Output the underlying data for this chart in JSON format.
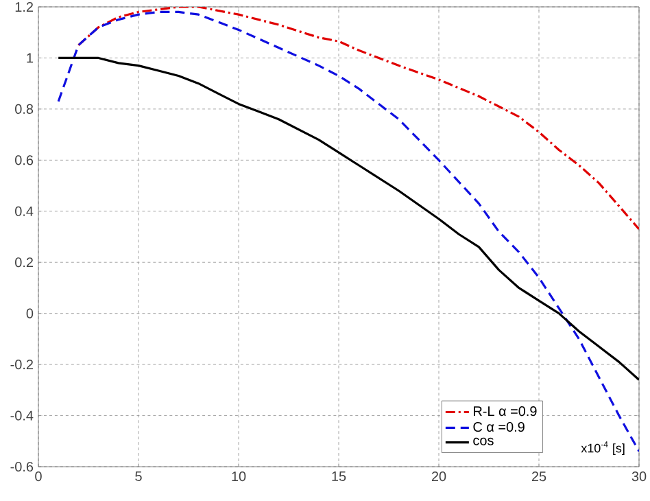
{
  "chart_data": {
    "type": "line",
    "xlabel": "x10$^{-4}$ [s]",
    "xlim": [
      0,
      30
    ],
    "ylim": [
      -0.6,
      1.2
    ],
    "xticks": [
      0,
      5,
      10,
      15,
      20,
      25,
      30
    ],
    "yticks": [
      -0.6,
      -0.4,
      -0.2,
      0,
      0.2,
      0.4,
      0.6,
      0.8,
      1,
      1.2
    ],
    "grid": true,
    "legend": "bottom right",
    "marker": "none",
    "series": [
      {
        "name": "R-L α =0.9",
        "color": "#e00000",
        "line_style": "dashdot",
        "x": [
          2,
          3,
          4,
          5,
          6,
          7,
          8,
          10,
          12,
          14,
          15,
          16,
          18,
          20,
          22,
          24,
          25,
          26,
          27,
          28,
          29,
          30
        ],
        "values": [
          1.05,
          1.12,
          1.16,
          1.18,
          1.19,
          1.2,
          1.2,
          1.17,
          1.13,
          1.08,
          1.065,
          1.03,
          0.97,
          0.915,
          0.85,
          0.77,
          0.71,
          0.64,
          0.58,
          0.51,
          0.42,
          0.33
        ]
      },
      {
        "name": "C α =0.9",
        "color": "#1010e0",
        "line_style": "dashed",
        "x": [
          1,
          2,
          3,
          4,
          5,
          6,
          7,
          8,
          10,
          12,
          14,
          15,
          16,
          18,
          20,
          22,
          23,
          24,
          25,
          26,
          27,
          28,
          29,
          30
        ],
        "values": [
          0.83,
          1.05,
          1.12,
          1.15,
          1.17,
          1.18,
          1.18,
          1.17,
          1.11,
          1.04,
          0.97,
          0.93,
          0.88,
          0.76,
          0.6,
          0.43,
          0.32,
          0.24,
          0.14,
          0.02,
          -0.1,
          -0.25,
          -0.4,
          -0.54
        ]
      },
      {
        "name": "cos",
        "color": "#000000",
        "line_style": "solid",
        "x": [
          1,
          2,
          3,
          4,
          5,
          6,
          7,
          8,
          9,
          10,
          11,
          12,
          14,
          15,
          16,
          18,
          20,
          21,
          22,
          23,
          24,
          25,
          26,
          27,
          28,
          29,
          30
        ],
        "values": [
          1.0,
          1.0,
          1.0,
          0.98,
          0.97,
          0.95,
          0.93,
          0.9,
          0.86,
          0.82,
          0.79,
          0.76,
          0.68,
          0.63,
          0.58,
          0.48,
          0.37,
          0.31,
          0.26,
          0.17,
          0.1,
          0.05,
          0.0,
          -0.07,
          -0.13,
          -0.19,
          -0.26
        ]
      }
    ]
  }
}
